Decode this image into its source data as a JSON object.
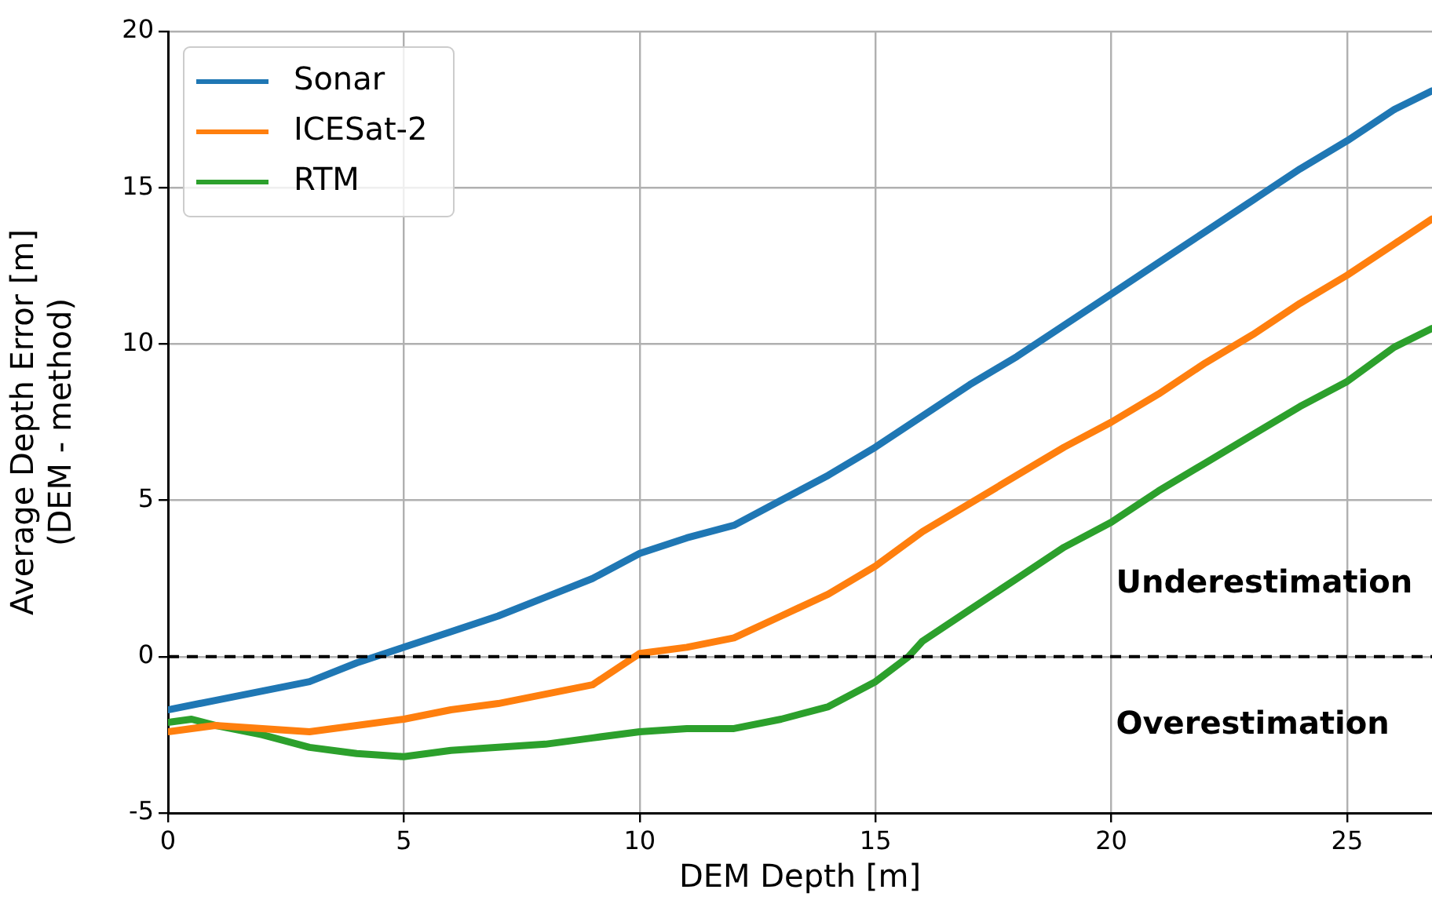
{
  "chart_data": {
    "type": "line",
    "xlabel": "DEM Depth [m]",
    "ylabel": "Average Depth Error [m]\n(DEM - method)",
    "xlim": [
      0,
      26.8
    ],
    "xticks": [
      0,
      5,
      10,
      15,
      20,
      25
    ],
    "ylim": [
      -5,
      20
    ],
    "yticks": [
      -5,
      0,
      5,
      10,
      15,
      20
    ],
    "grid": true,
    "legend": "top left",
    "line_style": "solid",
    "marker": "none",
    "series": [
      {
        "name": "Sonar",
        "color": "#1f77b4",
        "x": [
          0,
          1,
          2,
          3,
          4,
          5,
          6,
          7,
          8,
          9,
          10,
          11,
          12,
          13,
          14,
          15,
          16,
          17,
          18,
          19,
          20,
          21,
          22,
          23,
          24,
          25,
          26,
          26.8
        ],
        "values": [
          -1.7,
          -1.4,
          -1.1,
          -0.8,
          -0.2,
          0.3,
          0.8,
          1.3,
          1.9,
          2.5,
          3.3,
          3.8,
          4.2,
          5.0,
          5.8,
          6.7,
          7.7,
          8.7,
          9.6,
          10.6,
          11.6,
          12.6,
          13.6,
          14.6,
          15.6,
          16.5,
          17.5,
          18.1
        ]
      },
      {
        "name": "ICESat-2",
        "color": "#ff7f0e",
        "x": [
          0,
          1,
          2,
          3,
          4,
          5,
          6,
          7,
          8,
          9,
          10,
          11,
          12,
          13,
          14,
          15,
          16,
          17,
          18,
          19,
          20,
          21,
          22,
          23,
          24,
          25,
          26,
          26.8
        ],
        "values": [
          -2.4,
          -2.2,
          -2.3,
          -2.4,
          -2.2,
          -2.0,
          -1.7,
          -1.5,
          -1.2,
          -0.9,
          0.1,
          0.3,
          0.6,
          1.3,
          2.0,
          2.9,
          4.0,
          4.9,
          5.8,
          6.7,
          7.5,
          8.4,
          9.4,
          10.3,
          11.3,
          12.2,
          13.2,
          14.0
        ]
      },
      {
        "name": "RTM",
        "color": "#2ca02c",
        "x": [
          0,
          0.5,
          1,
          2,
          3,
          4,
          5,
          6,
          7,
          8,
          9,
          10,
          11,
          12,
          13,
          14,
          15,
          15.7,
          16,
          17,
          18,
          19,
          20,
          21,
          22,
          23,
          24,
          25,
          26,
          26.8
        ],
        "values": [
          -2.1,
          -2.0,
          -2.2,
          -2.5,
          -2.9,
          -3.1,
          -3.2,
          -3.0,
          -2.9,
          -2.8,
          -2.6,
          -2.4,
          -2.3,
          -2.3,
          -2.0,
          -1.6,
          -0.8,
          0.0,
          0.5,
          1.5,
          2.5,
          3.5,
          4.3,
          5.3,
          6.2,
          7.1,
          8.0,
          8.8,
          9.9,
          10.5
        ]
      }
    ],
    "ref_lines": [
      {
        "axis": "y",
        "value": 0,
        "color": "#000000",
        "line_style": "dashed"
      }
    ],
    "annotations": [
      "Underestimation",
      "Overestimation"
    ]
  }
}
